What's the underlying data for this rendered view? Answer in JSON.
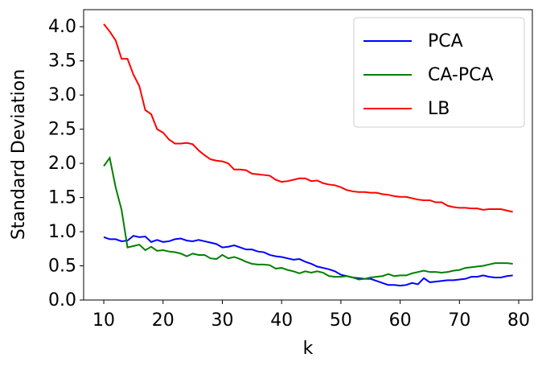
{
  "chart_data": {
    "type": "line",
    "xlabel": "k",
    "ylabel": "Standard Deviation",
    "x": [
      10,
      11,
      12,
      13,
      14,
      15,
      16,
      17,
      18,
      19,
      20,
      21,
      22,
      23,
      24,
      25,
      26,
      27,
      28,
      29,
      30,
      31,
      32,
      33,
      34,
      35,
      36,
      37,
      38,
      39,
      40,
      41,
      42,
      43,
      44,
      45,
      46,
      47,
      48,
      49,
      50,
      51,
      52,
      53,
      54,
      55,
      56,
      57,
      58,
      59,
      60,
      61,
      62,
      63,
      64,
      65,
      66,
      67,
      68,
      69,
      70,
      71,
      72,
      73,
      74,
      75,
      76,
      77,
      78,
      79
    ],
    "series": [
      {
        "name": "PCA",
        "color": "#0000ff",
        "values": [
          0.92,
          0.89,
          0.89,
          0.86,
          0.87,
          0.94,
          0.92,
          0.93,
          0.85,
          0.88,
          0.85,
          0.86,
          0.89,
          0.9,
          0.87,
          0.86,
          0.88,
          0.86,
          0.84,
          0.82,
          0.77,
          0.78,
          0.8,
          0.77,
          0.74,
          0.74,
          0.71,
          0.7,
          0.66,
          0.64,
          0.63,
          0.61,
          0.59,
          0.6,
          0.56,
          0.53,
          0.49,
          0.47,
          0.45,
          0.42,
          0.37,
          0.35,
          0.33,
          0.32,
          0.31,
          0.31,
          0.28,
          0.25,
          0.22,
          0.22,
          0.21,
          0.22,
          0.25,
          0.23,
          0.32,
          0.26,
          0.27,
          0.28,
          0.29,
          0.29,
          0.3,
          0.31,
          0.34,
          0.34,
          0.36,
          0.34,
          0.33,
          0.33,
          0.35,
          0.36
        ]
      },
      {
        "name": "CA-PCA",
        "color": "#008000",
        "values": [
          1.96,
          2.08,
          1.65,
          1.32,
          0.77,
          0.79,
          0.81,
          0.73,
          0.78,
          0.72,
          0.73,
          0.71,
          0.7,
          0.68,
          0.64,
          0.68,
          0.66,
          0.66,
          0.61,
          0.6,
          0.66,
          0.61,
          0.63,
          0.6,
          0.56,
          0.53,
          0.52,
          0.52,
          0.51,
          0.46,
          0.47,
          0.44,
          0.42,
          0.39,
          0.42,
          0.4,
          0.42,
          0.4,
          0.35,
          0.34,
          0.34,
          0.35,
          0.33,
          0.3,
          0.31,
          0.33,
          0.34,
          0.35,
          0.38,
          0.35,
          0.36,
          0.36,
          0.39,
          0.41,
          0.43,
          0.41,
          0.41,
          0.4,
          0.41,
          0.43,
          0.44,
          0.47,
          0.48,
          0.49,
          0.5,
          0.52,
          0.54,
          0.54,
          0.54,
          0.53
        ]
      },
      {
        "name": "LB",
        "color": "#ff0000",
        "values": [
          4.04,
          3.93,
          3.8,
          3.53,
          3.53,
          3.3,
          3.13,
          2.78,
          2.72,
          2.5,
          2.45,
          2.35,
          2.29,
          2.29,
          2.3,
          2.28,
          2.19,
          2.12,
          2.06,
          2.04,
          2.03,
          2.0,
          1.91,
          1.91,
          1.9,
          1.85,
          1.84,
          1.83,
          1.82,
          1.76,
          1.73,
          1.74,
          1.76,
          1.78,
          1.78,
          1.74,
          1.75,
          1.71,
          1.69,
          1.68,
          1.65,
          1.61,
          1.59,
          1.58,
          1.58,
          1.57,
          1.57,
          1.55,
          1.54,
          1.52,
          1.51,
          1.51,
          1.49,
          1.47,
          1.46,
          1.46,
          1.43,
          1.43,
          1.38,
          1.36,
          1.35,
          1.35,
          1.34,
          1.34,
          1.32,
          1.33,
          1.33,
          1.33,
          1.31,
          1.29
        ]
      }
    ],
    "xlim": [
      6.6,
      82.3
    ],
    "ylim": [
      0,
      4.25
    ],
    "xticks": [
      10,
      20,
      30,
      40,
      50,
      60,
      70,
      80
    ],
    "yticks": [
      {
        "value": 0,
        "label": "0.0"
      },
      0.5,
      {
        "value": 1,
        "label": "1.0"
      },
      1.5,
      {
        "value": 2,
        "label": "2.0"
      },
      2.5,
      {
        "value": 3,
        "label": "3.0"
      },
      3.5,
      {
        "value": 4,
        "label": "4.0"
      }
    ],
    "legend": "upper right"
  }
}
